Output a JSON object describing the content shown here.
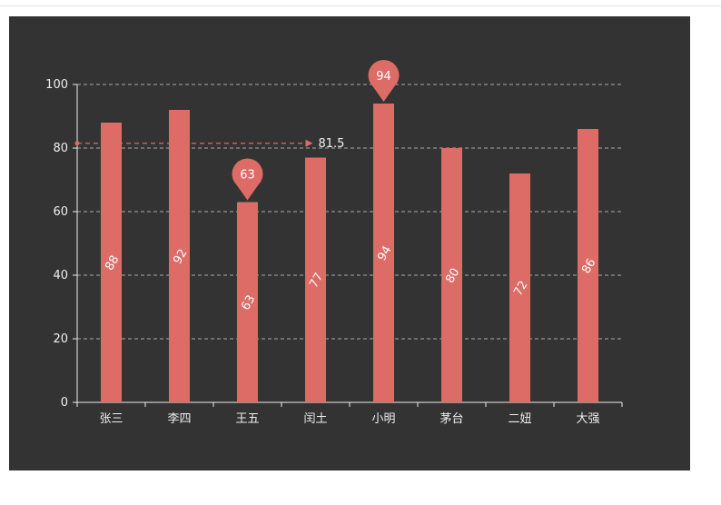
{
  "chart_data": {
    "type": "bar",
    "categories": [
      "张三",
      "李四",
      "王五",
      "闰土",
      "小明",
      "茅台",
      "二妞",
      "大强"
    ],
    "values": [
      88,
      92,
      63,
      77,
      94,
      80,
      72,
      86
    ],
    "yticks": [
      0,
      20,
      40,
      60,
      80,
      100
    ],
    "ylim": [
      0,
      100
    ],
    "grid": true,
    "mark_points": [
      {
        "label": "94",
        "value": 94,
        "category": "小明"
      },
      {
        "label": "63",
        "value": 63,
        "category": "王五"
      }
    ],
    "mark_line": {
      "label": "81.5",
      "value": 81.5
    },
    "colors": {
      "background": "#333333",
      "bar": "#dd6b66",
      "axis": "#eeeeee",
      "grid": "#aaaaaa",
      "text": "#eeeeee"
    }
  }
}
